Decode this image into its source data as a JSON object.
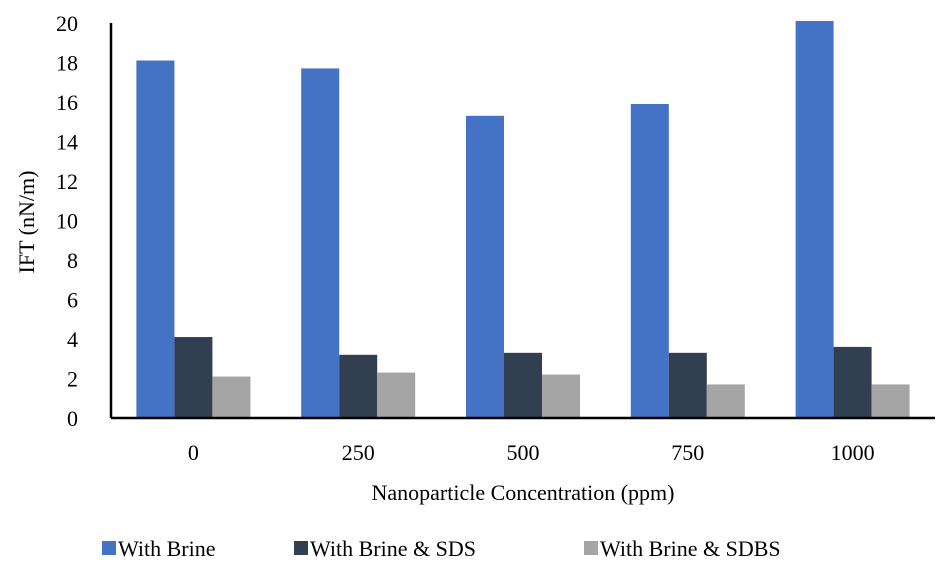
{
  "chart_data": {
    "type": "bar",
    "title": "",
    "xlabel": "Nanoparticle Concentration (ppm)",
    "ylabel": "IFT (nN/m)",
    "categories": [
      "0",
      "250",
      "500",
      "750",
      "1000"
    ],
    "ylim": [
      0,
      20
    ],
    "yticks": [
      "0",
      "2",
      "4",
      "6",
      "8",
      "10",
      "12",
      "14",
      "16",
      "18",
      "20"
    ],
    "grid": false,
    "legend_position": "bottom",
    "series": [
      {
        "name": "With Brine",
        "color": "#4472C4",
        "values": [
          18.1,
          17.7,
          15.3,
          15.9,
          20.1
        ]
      },
      {
        "name": "With Brine & SDS",
        "color": "#323F50",
        "values": [
          4.1,
          3.2,
          3.3,
          3.3,
          3.6
        ]
      },
      {
        "name": "With Brine & SDBS",
        "color": "#A5A5A5",
        "values": [
          2.1,
          2.3,
          2.2,
          1.7,
          1.7
        ]
      }
    ]
  }
}
